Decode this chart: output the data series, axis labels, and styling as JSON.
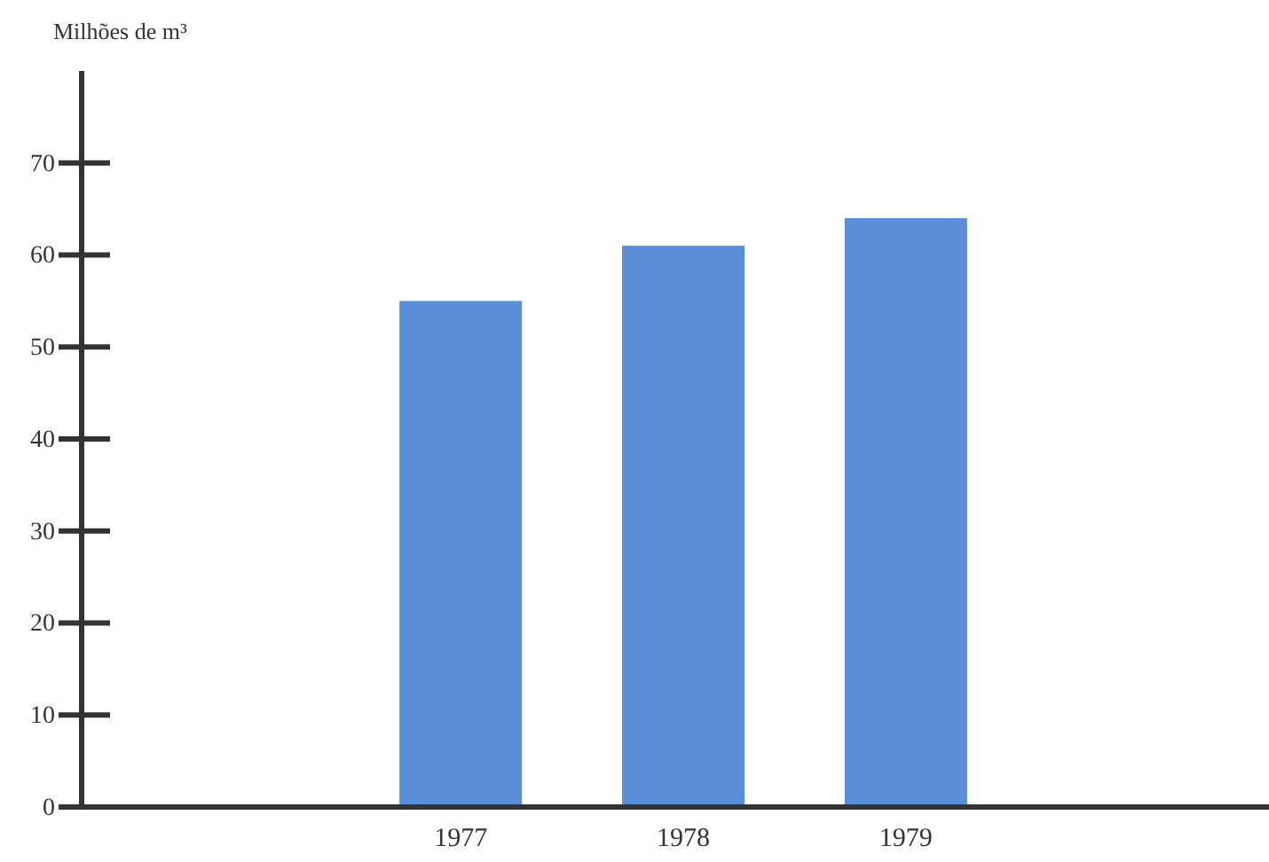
{
  "chart_data": {
    "type": "bar",
    "ylabel": "Milhões de m³",
    "categories": [
      "1977",
      "1978",
      "1979"
    ],
    "values": [
      55,
      61,
      64
    ],
    "color": "#5a8ed8",
    "ylim": [
      0,
      80
    ],
    "yticks": [
      0,
      10,
      20,
      30,
      40,
      50,
      60,
      70
    ],
    "grid": false
  }
}
